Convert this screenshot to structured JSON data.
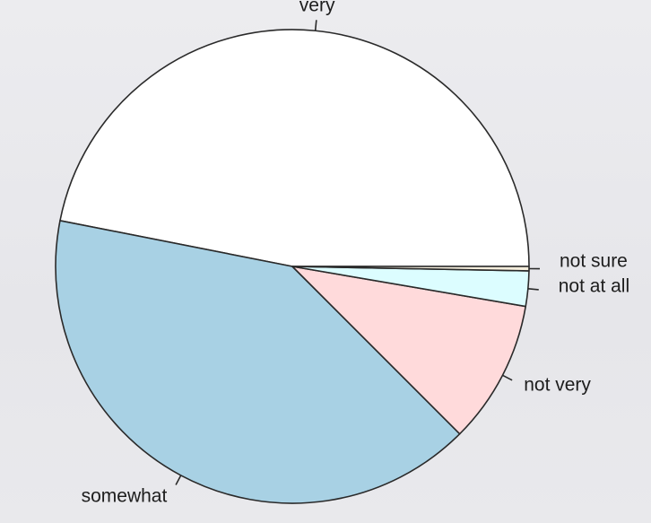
{
  "chart_data": {
    "type": "pie",
    "title": "",
    "categories": [
      "very",
      "somewhat",
      "not very",
      "not at all",
      "not sure"
    ],
    "values": [
      46.9,
      40.6,
      9.8,
      2.4,
      0.3
    ],
    "colors": {
      "very": "#ffffff",
      "somewhat": "#a8d1e4",
      "not very": "#ffdadb",
      "not at all": "#dcfdff",
      "not sure": "#f4eddc"
    },
    "start": "right (3 o'clock)",
    "direction": "counter-clockwise",
    "legend": "none",
    "labels": "outside with leader ticks"
  }
}
